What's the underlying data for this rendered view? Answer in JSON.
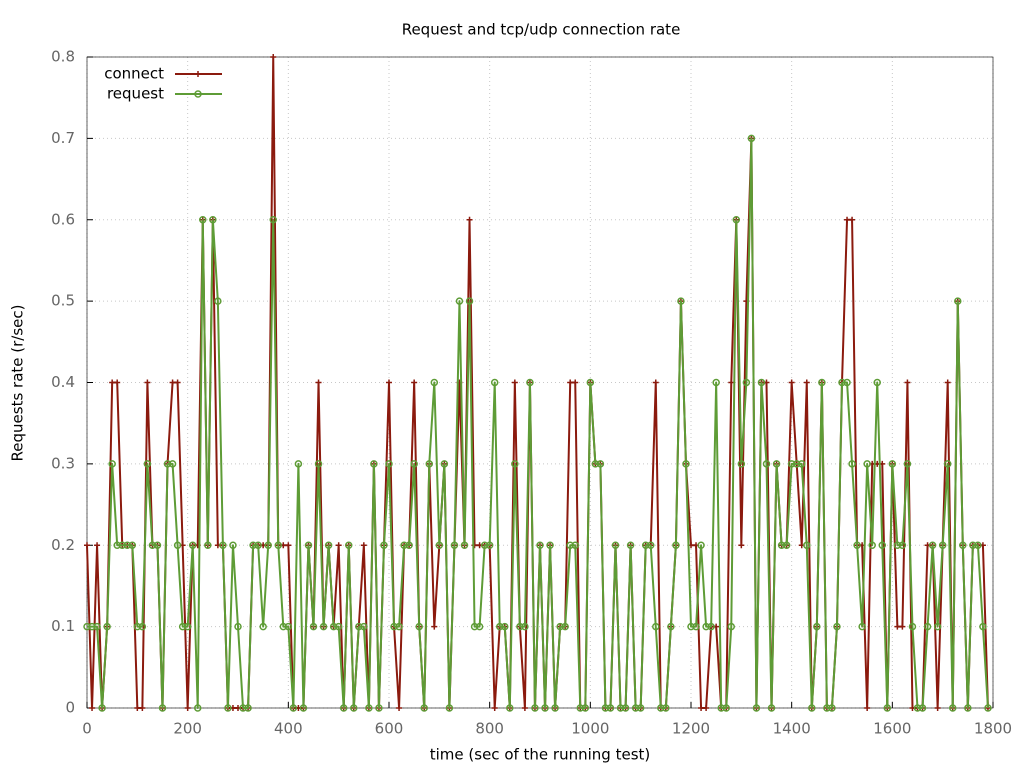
{
  "chart_data": {
    "type": "line",
    "title": "Request and tcp/udp connection rate",
    "xlabel": "time (sec of the running test)",
    "ylabel": "Requests rate (r/sec)",
    "x": [
      0,
      10,
      20,
      30,
      40,
      50,
      60,
      70,
      80,
      90,
      100,
      110,
      120,
      130,
      140,
      150,
      160,
      170,
      180,
      190,
      200,
      210,
      220,
      230,
      240,
      250,
      260,
      270,
      280,
      290,
      300,
      310,
      320,
      330,
      340,
      350,
      360,
      370,
      380,
      390,
      400,
      410,
      420,
      430,
      440,
      450,
      460,
      470,
      480,
      490,
      500,
      510,
      520,
      530,
      540,
      550,
      560,
      570,
      580,
      590,
      600,
      610,
      620,
      630,
      640,
      650,
      660,
      670,
      680,
      690,
      700,
      710,
      720,
      730,
      740,
      750,
      760,
      770,
      780,
      790,
      800,
      810,
      820,
      830,
      840,
      850,
      860,
      870,
      880,
      890,
      900,
      910,
      920,
      930,
      940,
      950,
      960,
      970,
      980,
      990,
      1000,
      1010,
      1020,
      1030,
      1040,
      1050,
      1060,
      1070,
      1080,
      1090,
      1100,
      1110,
      1120,
      1130,
      1140,
      1150,
      1160,
      1170,
      1180,
      1190,
      1200,
      1210,
      1220,
      1230,
      1240,
      1250,
      1260,
      1270,
      1280,
      1290,
      1300,
      1310,
      1320,
      1330,
      1340,
      1350,
      1360,
      1370,
      1380,
      1390,
      1400,
      1410,
      1420,
      1430,
      1440,
      1450,
      1460,
      1470,
      1480,
      1490,
      1500,
      1510,
      1520,
      1530,
      1540,
      1550,
      1560,
      1570,
      1580,
      1590,
      1600,
      1610,
      1620,
      1630,
      1640,
      1650,
      1660,
      1670,
      1680,
      1690,
      1700,
      1710,
      1720,
      1730,
      1740,
      1750,
      1760,
      1770,
      1780,
      1790
    ],
    "series": [
      {
        "name": "connect",
        "color": "#8b1a0e",
        "marker": "plus",
        "values": [
          0.2,
          0,
          0.2,
          0,
          0.1,
          0.4,
          0.4,
          0.2,
          0.2,
          0.2,
          0,
          0,
          0.4,
          0.2,
          0.2,
          0,
          0.3,
          0.4,
          0.4,
          0.2,
          0,
          0.2,
          0.2,
          0.6,
          0.2,
          0.6,
          0.2,
          0.2,
          0,
          0,
          0,
          0,
          0,
          0.2,
          0.2,
          0.2,
          0.2,
          0.8,
          0.2,
          0.2,
          0.2,
          0,
          0,
          0,
          0.2,
          0.1,
          0.4,
          0.1,
          0.2,
          0.1,
          0.2,
          0,
          0.2,
          0,
          0.1,
          0.2,
          0,
          0.3,
          0,
          0.2,
          0.4,
          0.1,
          0,
          0.2,
          0.2,
          0.4,
          0.1,
          0,
          0.3,
          0.1,
          0.2,
          0.3,
          0,
          0.2,
          0.4,
          0.2,
          0.6,
          0.2,
          0.2,
          0.2,
          0.2,
          0,
          0.1,
          0.1,
          0,
          0.4,
          0.1,
          0,
          0.4,
          0,
          0.2,
          0,
          0.2,
          0,
          0.1,
          0.1,
          0.4,
          0.4,
          0,
          0,
          0.4,
          0.3,
          0.3,
          0,
          0,
          0.2,
          0,
          0,
          0.2,
          0,
          0,
          0.2,
          0.2,
          0.4,
          0,
          0,
          0.1,
          0.2,
          0.5,
          0.3,
          0.2,
          0.2,
          0,
          0,
          0.1,
          0.1,
          0,
          0,
          0.4,
          0.6,
          0.2,
          0.5,
          0.7,
          0,
          0.4,
          0.4,
          0,
          0.3,
          0.2,
          0.2,
          0.4,
          0.3,
          0.2,
          0.4,
          0,
          0.1,
          0.4,
          0,
          0,
          0.1,
          0.4,
          0.6,
          0.6,
          0.2,
          0.2,
          0,
          0.3,
          0.3,
          0.3,
          0,
          0.3,
          0.1,
          0.1,
          0.4,
          0,
          0,
          0,
          0.2,
          0.2,
          0,
          0.2,
          0.4,
          0,
          0.5,
          0.2,
          0,
          0.2,
          0.2,
          0.2,
          0
        ]
      },
      {
        "name": "request",
        "color": "#5e9c36",
        "marker": "circle",
        "values": [
          0.1,
          0.1,
          0.1,
          0,
          0.1,
          0.3,
          0.2,
          0.2,
          0.2,
          0.2,
          0.1,
          0.1,
          0.3,
          0.2,
          0.2,
          0,
          0.3,
          0.3,
          0.2,
          0.1,
          0.1,
          0.2,
          0,
          0.6,
          0.2,
          0.6,
          0.5,
          0.2,
          0,
          0.2,
          0.1,
          0,
          0,
          0.2,
          0.2,
          0.1,
          0.2,
          0.6,
          0.2,
          0.1,
          0.1,
          0,
          0.3,
          0,
          0.2,
          0.1,
          0.3,
          0.1,
          0.2,
          0.1,
          0.1,
          0,
          0.2,
          0,
          0.1,
          0.1,
          0,
          0.3,
          0,
          0.2,
          0.3,
          0.1,
          0.1,
          0.2,
          0.2,
          0.3,
          0.1,
          0,
          0.3,
          0.4,
          0.2,
          0.3,
          0,
          0.2,
          0.5,
          0.2,
          0.5,
          0.1,
          0.1,
          0.2,
          0.2,
          0.4,
          0.1,
          0.1,
          0,
          0.3,
          0.1,
          0.1,
          0.4,
          0,
          0.2,
          0,
          0.2,
          0,
          0.1,
          0.1,
          0.2,
          0.2,
          0,
          0,
          0.4,
          0.3,
          0.3,
          0,
          0,
          0.2,
          0,
          0,
          0.2,
          0,
          0,
          0.2,
          0.2,
          0.1,
          0,
          0,
          0.1,
          0.2,
          0.5,
          0.3,
          0.1,
          0.1,
          0.2,
          0.1,
          0.1,
          0.4,
          0,
          0,
          0.1,
          0.6,
          0.3,
          0.4,
          0.7,
          0,
          0.4,
          0.3,
          0,
          0.3,
          0.2,
          0.2,
          0.3,
          0.3,
          0.3,
          0.2,
          0,
          0.1,
          0.4,
          0,
          0,
          0.1,
          0.4,
          0.4,
          0.3,
          0.2,
          0.1,
          0.3,
          0.2,
          0.4,
          0.2,
          0,
          0.3,
          0.2,
          0.2,
          0.3,
          0.1,
          0,
          0,
          0.1,
          0.2,
          0.1,
          0.2,
          0.3,
          0,
          0.5,
          0.2,
          0,
          0.2,
          0.2,
          0.1,
          0
        ]
      }
    ],
    "xlim": [
      0,
      1800
    ],
    "xticks": [
      0,
      200,
      400,
      600,
      800,
      1000,
      1200,
      1400,
      1600,
      1800
    ],
    "ylim": [
      0,
      0.8
    ],
    "yticks": [
      0,
      0.1,
      0.2,
      0.3,
      0.4,
      0.5,
      0.6,
      0.7,
      0.8
    ],
    "grid": true,
    "legend": "top-left"
  }
}
